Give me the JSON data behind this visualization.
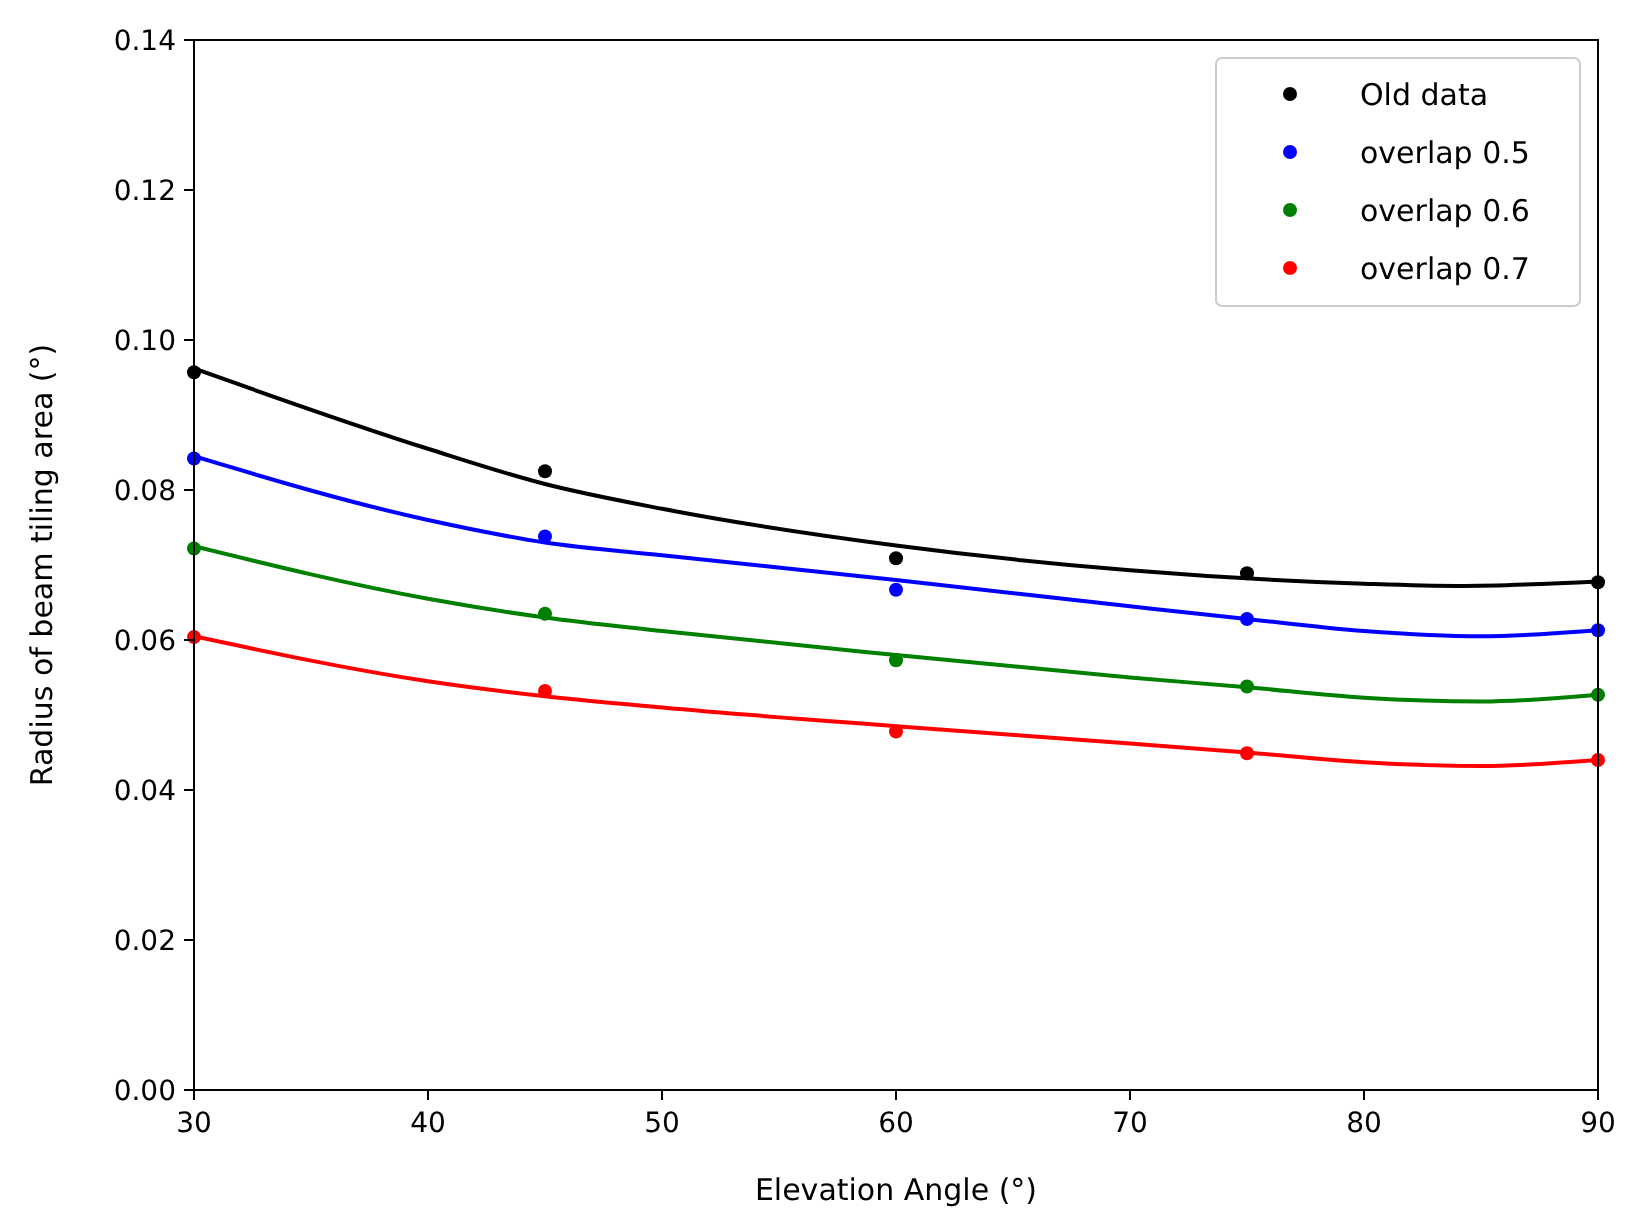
{
  "chart_data": {
    "type": "scatter",
    "xlabel": "Elevation Angle (°)",
    "ylabel": "Radius of beam tiling area (°)",
    "x": [
      30,
      45,
      60,
      75,
      90
    ],
    "xlim": [
      30,
      90
    ],
    "xticks": [
      30,
      40,
      50,
      60,
      70,
      80,
      90
    ],
    "ylim": [
      0,
      0.14
    ],
    "yticks": [
      {
        "value": 0,
        "label": "0.00"
      },
      {
        "value": 0.02,
        "label": "0.02"
      },
      {
        "value": 0.04,
        "label": "0.04"
      },
      {
        "value": 0.06,
        "label": "0.06"
      },
      {
        "value": 0.08,
        "label": "0.08"
      },
      {
        "value": 0.1,
        "label": "0.10"
      },
      {
        "value": 0.12,
        "label": "0.12"
      },
      {
        "value": 0.14,
        "label": "0.14"
      }
    ],
    "legend": "top right",
    "marker": "circle",
    "grid": false,
    "series": [
      {
        "name": "Old data",
        "color": "#000000",
        "values": [
          0.0957,
          0.0825,
          0.0709,
          0.0689,
          0.0677
        ]
      },
      {
        "name": "overlap 0.5",
        "color": "#0000ff",
        "values": [
          0.0842,
          0.0738,
          0.0667,
          0.0628,
          0.0613
        ]
      },
      {
        "name": "overlap 0.6",
        "color": "#008000",
        "values": [
          0.0722,
          0.0635,
          0.0573,
          0.0538,
          0.0527
        ]
      },
      {
        "name": "overlap 0.7",
        "color": "#ff0000",
        "values": [
          0.0604,
          0.0532,
          0.0478,
          0.0449,
          0.044
        ]
      },
      {
        "type": "line",
        "marker": "none",
        "color": "#000000",
        "x": [
          30,
          40,
          45,
          50,
          60,
          70,
          80,
          84,
          90
        ],
        "values": [
          0.0962,
          0.0855,
          0.0808,
          0.0775,
          0.0726,
          0.0693,
          0.0675,
          0.0672,
          0.0678
        ]
      },
      {
        "type": "line",
        "marker": "none",
        "color": "#0000ff",
        "x": [
          30,
          40,
          45,
          50,
          60,
          70,
          75,
          80,
          85,
          90
        ],
        "values": [
          0.0845,
          0.076,
          0.073,
          0.0713,
          0.068,
          0.0645,
          0.0628,
          0.0612,
          0.0605,
          0.0613
        ]
      },
      {
        "type": "line",
        "marker": "none",
        "color": "#008000",
        "x": [
          30,
          40,
          45,
          50,
          60,
          70,
          75,
          80,
          85,
          90
        ],
        "values": [
          0.0725,
          0.0655,
          0.063,
          0.0612,
          0.058,
          0.055,
          0.0537,
          0.0523,
          0.0518,
          0.0527
        ]
      },
      {
        "type": "line",
        "marker": "none",
        "color": "#ff0000",
        "x": [
          30,
          40,
          45,
          50,
          60,
          70,
          75,
          80,
          85,
          90
        ],
        "values": [
          0.0605,
          0.0545,
          0.0525,
          0.051,
          0.0485,
          0.0462,
          0.045,
          0.0437,
          0.0432,
          0.044
        ]
      }
    ]
  }
}
